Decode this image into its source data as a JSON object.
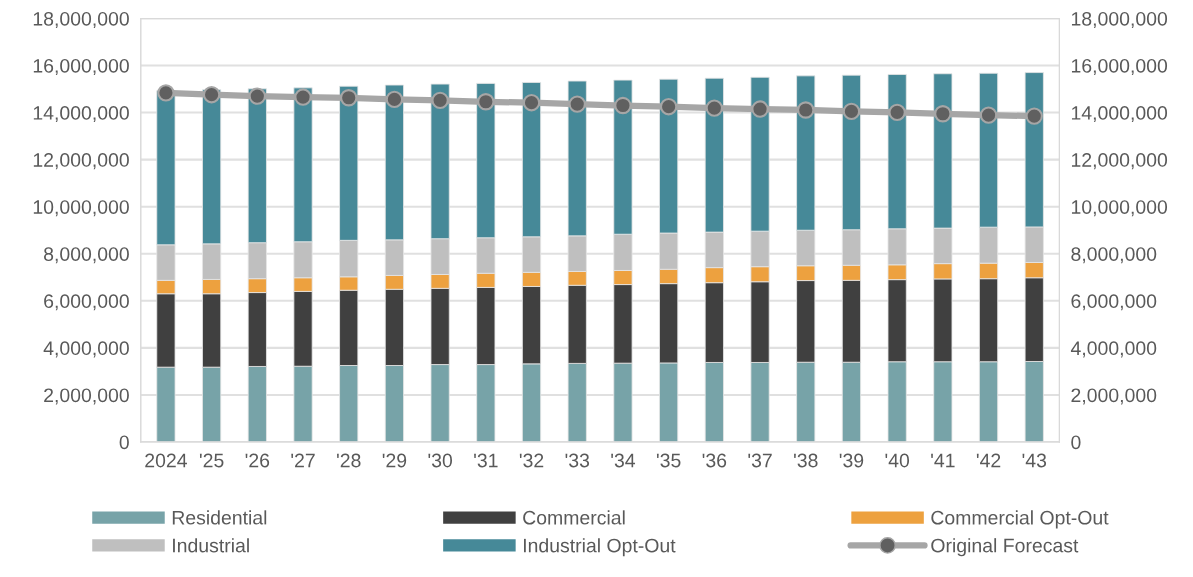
{
  "chart_data": {
    "type": "bar",
    "stacked": true,
    "categories": [
      "2024",
      "'25",
      "'26",
      "'27",
      "'28",
      "'29",
      "'30",
      "'31",
      "'32",
      "'33",
      "'34",
      "'35",
      "'36",
      "'37",
      "'38",
      "'39",
      "'40",
      "'41",
      "'42",
      "'43"
    ],
    "series": [
      {
        "name": "Residential",
        "color": "#77a3a8",
        "values": [
          3180000,
          3180000,
          3210000,
          3220000,
          3250000,
          3250000,
          3290000,
          3290000,
          3320000,
          3340000,
          3350000,
          3360000,
          3380000,
          3380000,
          3390000,
          3390000,
          3410000,
          3410000,
          3410000,
          3420000
        ]
      },
      {
        "name": "Commercial",
        "color": "#404040",
        "values": [
          3120000,
          3120000,
          3140000,
          3180000,
          3200000,
          3240000,
          3240000,
          3280000,
          3290000,
          3320000,
          3340000,
          3370000,
          3390000,
          3430000,
          3470000,
          3480000,
          3490000,
          3520000,
          3530000,
          3560000
        ]
      },
      {
        "name": "Commercial Opt-Out",
        "color": "#eda13f",
        "values": [
          570000,
          610000,
          590000,
          580000,
          570000,
          590000,
          590000,
          600000,
          600000,
          590000,
          600000,
          610000,
          640000,
          640000,
          630000,
          640000,
          630000,
          650000,
          660000,
          650000
        ]
      },
      {
        "name": "Industrial",
        "color": "#bfbfbf",
        "values": [
          1510000,
          1510000,
          1530000,
          1530000,
          1550000,
          1510000,
          1520000,
          1510000,
          1510000,
          1510000,
          1540000,
          1540000,
          1510000,
          1510000,
          1510000,
          1510000,
          1530000,
          1510000,
          1530000,
          1510000
        ]
      },
      {
        "name": "Industrial Opt-Out",
        "color": "#468998",
        "values": [
          6550000,
          6550000,
          6540000,
          6540000,
          6550000,
          6580000,
          6570000,
          6560000,
          6560000,
          6580000,
          6550000,
          6540000,
          6540000,
          6540000,
          6560000,
          6570000,
          6560000,
          6560000,
          6540000,
          6560000
        ]
      },
      {
        "name": "Original Forecast",
        "type": "line",
        "marker": "circle",
        "color": "#a6a6a6",
        "values": [
          14840000,
          14760000,
          14700000,
          14660000,
          14630000,
          14560000,
          14520000,
          14460000,
          14420000,
          14360000,
          14300000,
          14250000,
          14190000,
          14150000,
          14110000,
          14050000,
          14010000,
          13950000,
          13890000,
          13850000
        ]
      }
    ],
    "ylim": [
      0,
      18000000
    ],
    "yticks": [
      0,
      {
        "value": 2000000,
        "label": "2,000,000"
      },
      {
        "value": 4000000,
        "label": "4,000,000"
      },
      {
        "value": 6000000,
        "label": "6,000,000"
      },
      {
        "value": 8000000,
        "label": "8,000,000"
      },
      {
        "value": 10000000,
        "label": "10,000,000"
      },
      {
        "value": 12000000,
        "label": "12,000,000"
      },
      {
        "value": 14000000,
        "label": "14,000,000"
      },
      {
        "value": 16000000,
        "label": "16,000,000"
      },
      {
        "value": 18000000,
        "label": "18,000,000"
      }
    ],
    "y2lim": [
      0,
      18000000
    ],
    "y2ticks": [
      0,
      {
        "value": 2000000,
        "label": "2,000,000"
      },
      {
        "value": 4000000,
        "label": "4,000,000"
      },
      {
        "value": 6000000,
        "label": "6,000,000"
      },
      {
        "value": 8000000,
        "label": "8,000,000"
      },
      {
        "value": 10000000,
        "label": "10,000,000"
      },
      {
        "value": 12000000,
        "label": "12,000,000"
      },
      {
        "value": 14000000,
        "label": "14,000,000"
      },
      {
        "value": 16000000,
        "label": "16,000,000"
      },
      {
        "value": 18000000,
        "label": "18,000,000"
      }
    ],
    "grid": "y",
    "legend": "bottom"
  }
}
